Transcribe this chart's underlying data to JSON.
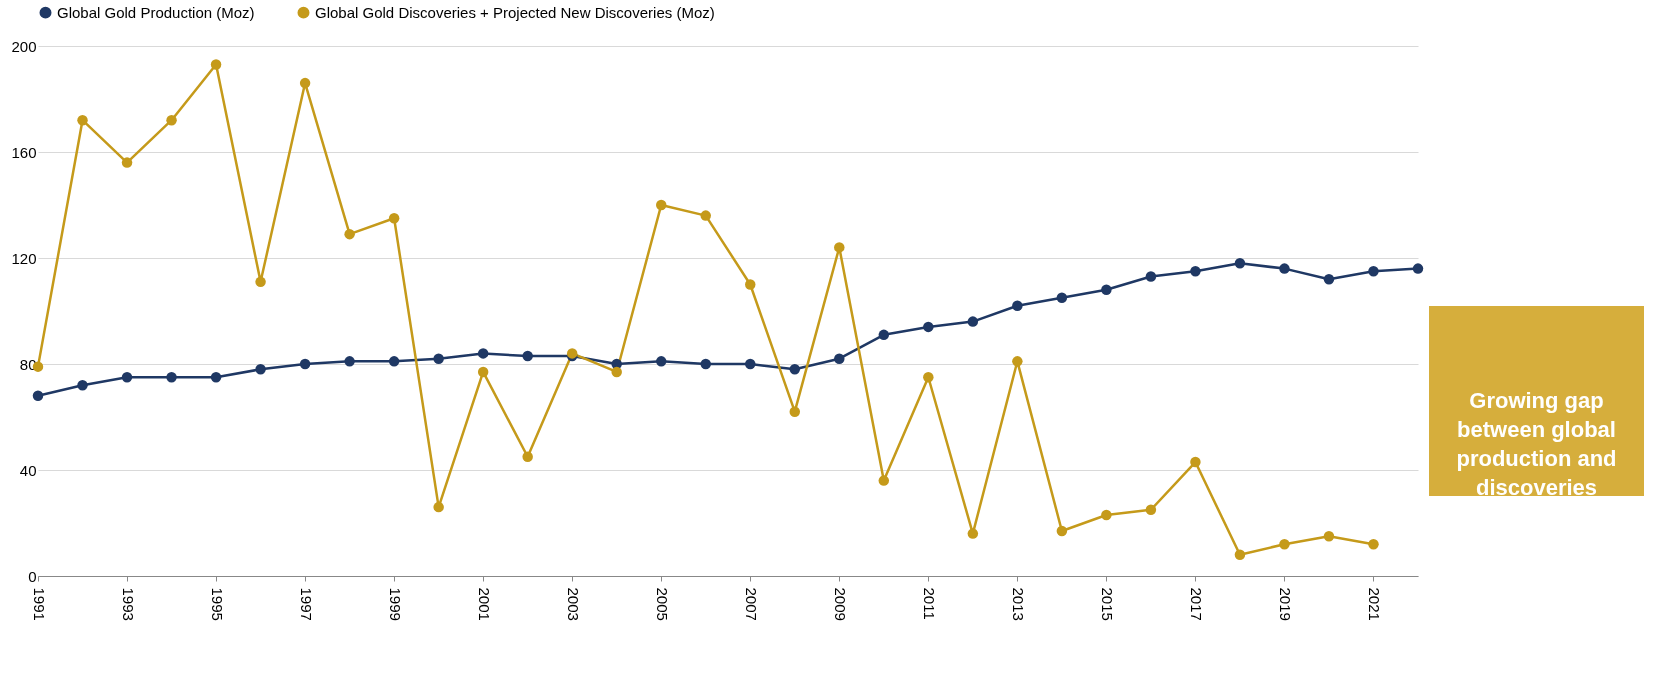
{
  "chart_data": {
    "type": "line",
    "x": [
      1991,
      1992,
      1993,
      1994,
      1995,
      1996,
      1997,
      1998,
      1999,
      2000,
      2001,
      2002,
      2003,
      2004,
      2005,
      2006,
      2007,
      2008,
      2009,
      2010,
      2011,
      2012,
      2013,
      2014,
      2015,
      2016,
      2017,
      2018,
      2019,
      2020,
      2021,
      2022
    ],
    "series": [
      {
        "name": "Global Gold Production (Moz)",
        "color": "#1f3864",
        "values": [
          68,
          72,
          75,
          75,
          75,
          78,
          80,
          81,
          81,
          82,
          84,
          83,
          83,
          80,
          81,
          80,
          80,
          78,
          82,
          91,
          94,
          96,
          102,
          105,
          108,
          113,
          115,
          118,
          116,
          112,
          115,
          116
        ]
      },
      {
        "name": "Global Gold Discoveries + Projected New Discoveries (Moz)",
        "color": "#c59a1a",
        "values": [
          79,
          172,
          156,
          172,
          193,
          111,
          186,
          129,
          135,
          26,
          77,
          45,
          84,
          77,
          140,
          136,
          110,
          62,
          124,
          36,
          75,
          16,
          81,
          17,
          23,
          25,
          43,
          8,
          12,
          15,
          12,
          null
        ]
      }
    ],
    "xlim": [
      1991,
      2022
    ],
    "xticks": [
      1991,
      1993,
      1995,
      1997,
      1999,
      2001,
      2003,
      2005,
      2007,
      2009,
      2011,
      2013,
      2015,
      2017,
      2019,
      2021
    ],
    "ylim": [
      0,
      200
    ],
    "yticks": [
      0,
      40,
      80,
      120,
      160,
      200
    ],
    "grid": "y",
    "legend": "top",
    "marker": "circle",
    "line_style": "solid",
    "annotations": [
      "Growing gap between global production and discoveries"
    ]
  }
}
